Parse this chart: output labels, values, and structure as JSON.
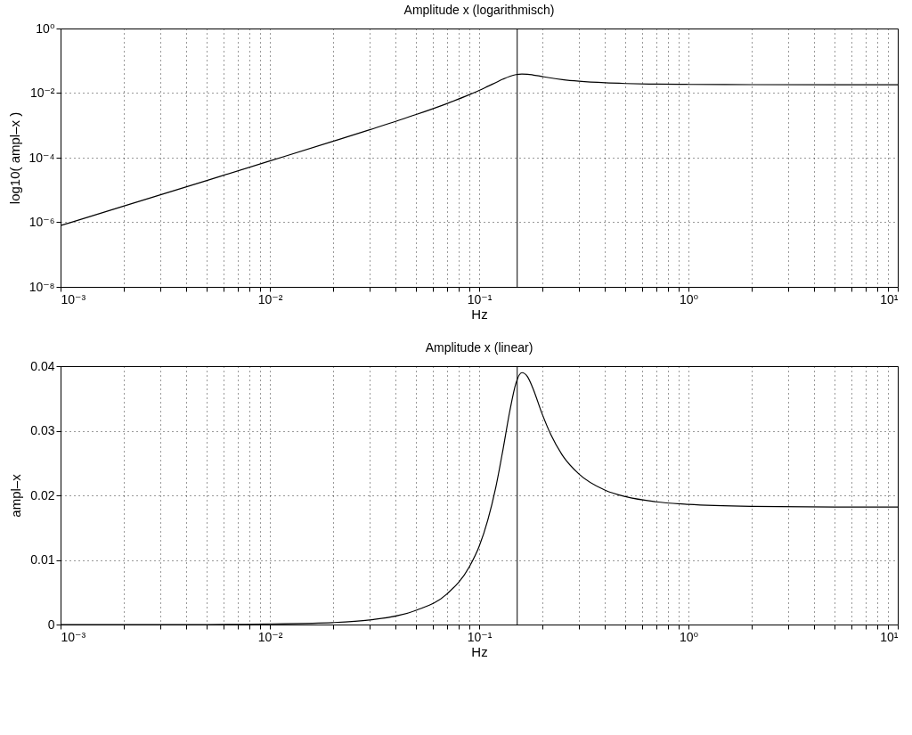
{
  "chart_data": [
    {
      "type": "line",
      "title": "Amplitude x (logarithmisch)",
      "xlabel": "Hz",
      "ylabel": "log10( ampl–x )",
      "log": "xy",
      "grid": true,
      "x": [
        0.001,
        0.002,
        0.005,
        0.01,
        0.02,
        0.03,
        0.05,
        0.07,
        0.09,
        0.1,
        0.11,
        0.12,
        0.13,
        0.14,
        0.15,
        0.16,
        0.17,
        0.18,
        0.2,
        0.22,
        0.25,
        0.3,
        0.4,
        0.5,
        0.7,
        1,
        2,
        5,
        10
      ],
      "series": [
        {
          "color": "#000000",
          "values": [
            7.9e-07,
            3.15e-06,
            1.97e-05,
            7.91e-05,
            0.00032,
            0.000734,
            0.00217,
            0.00472,
            0.009,
            0.0121,
            0.0162,
            0.0212,
            0.0271,
            0.033,
            0.0374,
            0.039,
            0.0384,
            0.0367,
            0.0326,
            0.0294,
            0.0262,
            0.0233,
            0.0208,
            0.0198,
            0.019,
            0.0186,
            0.0183,
            0.0182,
            0.0182
          ]
        }
      ],
      "ref_lines": [
        {
          "axis": "x",
          "value": 0.152,
          "color": "#000000"
        }
      ],
      "xlim": [
        0.001,
        10
      ],
      "ylim": [
        1e-08,
        1
      ],
      "xticks": [
        {
          "value": 0.001,
          "label": "10⁻³"
        },
        {
          "value": 0.002,
          "label": null
        },
        {
          "value": 0.003,
          "label": null
        },
        {
          "value": 0.004,
          "label": null
        },
        {
          "value": 0.005,
          "label": null
        },
        {
          "value": 0.006,
          "label": null
        },
        {
          "value": 0.007,
          "label": null
        },
        {
          "value": 0.008,
          "label": null
        },
        {
          "value": 0.009,
          "label": null
        },
        {
          "value": 0.01,
          "label": "10⁻²"
        },
        {
          "value": 0.02,
          "label": null
        },
        {
          "value": 0.03,
          "label": null
        },
        {
          "value": 0.04,
          "label": null
        },
        {
          "value": 0.05,
          "label": null
        },
        {
          "value": 0.06,
          "label": null
        },
        {
          "value": 0.07,
          "label": null
        },
        {
          "value": 0.08,
          "label": null
        },
        {
          "value": 0.09,
          "label": null
        },
        {
          "value": 0.1,
          "label": "10⁻¹"
        },
        {
          "value": 0.2,
          "label": null
        },
        {
          "value": 0.3,
          "label": null
        },
        {
          "value": 0.4,
          "label": null
        },
        {
          "value": 0.5,
          "label": null
        },
        {
          "value": 0.6,
          "label": null
        },
        {
          "value": 0.7,
          "label": null
        },
        {
          "value": 0.8,
          "label": null
        },
        {
          "value": 0.9,
          "label": null
        },
        {
          "value": 1,
          "label": "10⁰"
        },
        {
          "value": 2,
          "label": null
        },
        {
          "value": 3,
          "label": null
        },
        {
          "value": 4,
          "label": null
        },
        {
          "value": 5,
          "label": null
        },
        {
          "value": 6,
          "label": null
        },
        {
          "value": 7,
          "label": null
        },
        {
          "value": 8,
          "label": null
        },
        {
          "value": 9,
          "label": null
        },
        {
          "value": 10,
          "label": "10¹"
        }
      ],
      "yticks": [
        {
          "value": 1e-08,
          "label": "10⁻⁸"
        },
        {
          "value": 1e-06,
          "label": "10⁻⁶"
        },
        {
          "value": 0.0001,
          "label": "10⁻⁴"
        },
        {
          "value": 0.01,
          "label": "10⁻²"
        },
        {
          "value": 1,
          "label": "10⁰"
        }
      ]
    },
    {
      "type": "line",
      "title": "Amplitude x (linear)",
      "xlabel": "Hz",
      "ylabel": "ampl–x",
      "log": "x",
      "grid": true,
      "x": [
        0.001,
        0.002,
        0.005,
        0.01,
        0.02,
        0.03,
        0.05,
        0.07,
        0.09,
        0.1,
        0.11,
        0.12,
        0.13,
        0.14,
        0.15,
        0.16,
        0.17,
        0.18,
        0.2,
        0.22,
        0.25,
        0.3,
        0.4,
        0.5,
        0.7,
        1,
        2,
        5,
        10
      ],
      "series": [
        {
          "color": "#000000",
          "values": [
            0,
            0,
            0,
            0.0001,
            0.0003,
            0.0007,
            0.0022,
            0.0047,
            0.009,
            0.0121,
            0.0162,
            0.0212,
            0.0271,
            0.033,
            0.0374,
            0.039,
            0.0384,
            0.0367,
            0.0326,
            0.0294,
            0.0262,
            0.0233,
            0.0208,
            0.0198,
            0.019,
            0.0186,
            0.0183,
            0.0182,
            0.0182
          ]
        }
      ],
      "ref_lines": [
        {
          "axis": "x",
          "value": 0.152,
          "color": "#000000"
        }
      ],
      "xlim": [
        0.001,
        10
      ],
      "ylim": [
        0,
        0.04
      ],
      "xticks": [
        {
          "value": 0.001,
          "label": "10⁻³"
        },
        {
          "value": 0.002,
          "label": null
        },
        {
          "value": 0.003,
          "label": null
        },
        {
          "value": 0.004,
          "label": null
        },
        {
          "value": 0.005,
          "label": null
        },
        {
          "value": 0.006,
          "label": null
        },
        {
          "value": 0.007,
          "label": null
        },
        {
          "value": 0.008,
          "label": null
        },
        {
          "value": 0.009,
          "label": null
        },
        {
          "value": 0.01,
          "label": "10⁻²"
        },
        {
          "value": 0.02,
          "label": null
        },
        {
          "value": 0.03,
          "label": null
        },
        {
          "value": 0.04,
          "label": null
        },
        {
          "value": 0.05,
          "label": null
        },
        {
          "value": 0.06,
          "label": null
        },
        {
          "value": 0.07,
          "label": null
        },
        {
          "value": 0.08,
          "label": null
        },
        {
          "value": 0.09,
          "label": null
        },
        {
          "value": 0.1,
          "label": "10⁻¹"
        },
        {
          "value": 0.2,
          "label": null
        },
        {
          "value": 0.3,
          "label": null
        },
        {
          "value": 0.4,
          "label": null
        },
        {
          "value": 0.5,
          "label": null
        },
        {
          "value": 0.6,
          "label": null
        },
        {
          "value": 0.7,
          "label": null
        },
        {
          "value": 0.8,
          "label": null
        },
        {
          "value": 0.9,
          "label": null
        },
        {
          "value": 1,
          "label": "10⁰"
        },
        {
          "value": 2,
          "label": null
        },
        {
          "value": 3,
          "label": null
        },
        {
          "value": 4,
          "label": null
        },
        {
          "value": 5,
          "label": null
        },
        {
          "value": 6,
          "label": null
        },
        {
          "value": 7,
          "label": null
        },
        {
          "value": 8,
          "label": null
        },
        {
          "value": 9,
          "label": null
        },
        {
          "value": 10,
          "label": "10¹"
        }
      ],
      "yticks": [
        0,
        0.01,
        0.02,
        0.03,
        0.04
      ]
    }
  ]
}
